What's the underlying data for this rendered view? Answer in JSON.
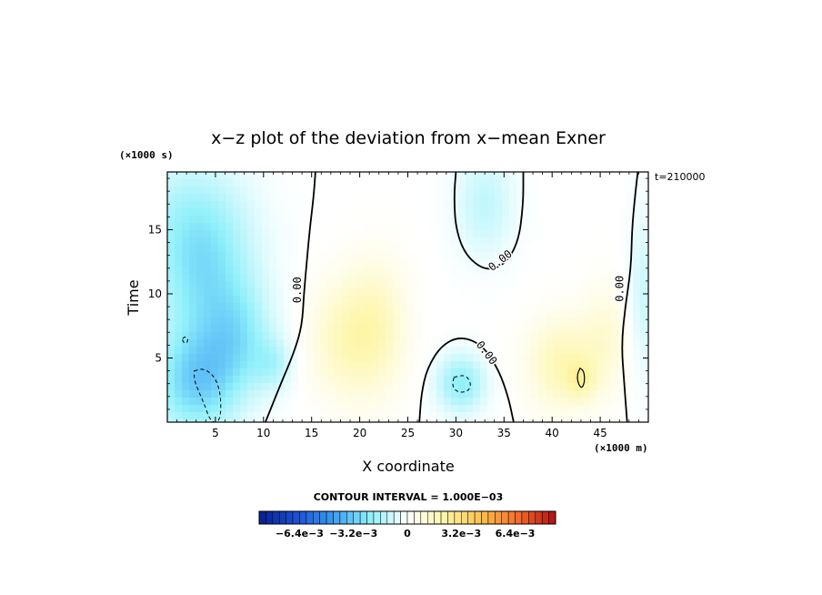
{
  "chart_data": {
    "type": "heatmap",
    "title": "x−z plot of the deviation from x−mean Exner",
    "xlabel": "X coordinate",
    "ylabel": "Time",
    "x_unit": "(×1000 m)",
    "y_unit": "(×1000 s)",
    "time_label": "t=210000",
    "xlim": [
      0,
      50
    ],
    "ylim": [
      0,
      19.5
    ],
    "xticks": [
      5,
      10,
      15,
      20,
      25,
      30,
      35,
      40,
      45
    ],
    "yticks": [
      5,
      10,
      15
    ],
    "contour_interval_label": "CONTOUR INTERVAL = 1.000E−03",
    "colorbar": {
      "range": [
        -0.0088,
        0.0088
      ],
      "tick_labels": [
        "−6.4e−3",
        "−3.2e−3",
        "0",
        "3.2e−3",
        "6.4e−3"
      ],
      "tick_values": [
        -0.0064,
        -0.0032,
        0,
        0.0032,
        0.0064
      ],
      "segments": 44,
      "colors": [
        "#0a1e8c",
        "#1a4fd6",
        "#3a9cf4",
        "#8ff0fa",
        "#ffffff",
        "#fdf6a8",
        "#fcc04a",
        "#f56a2a",
        "#b01010"
      ]
    },
    "contour_labels": [
      {
        "text": "0.00",
        "x": 13.5,
        "y": 10.3,
        "angle": -90
      },
      {
        "text": "0.00",
        "x": 34.6,
        "y": 12.6,
        "angle": -38
      },
      {
        "text": "0.00",
        "x": 33.2,
        "y": 5.4,
        "angle": 52
      },
      {
        "text": "0.00",
        "x": 47.0,
        "y": 10.4,
        "angle": -90
      }
    ],
    "contours_zero": [
      [
        [
          10.2,
          0
        ],
        [
          11.8,
          3
        ],
        [
          13.2,
          5.5
        ],
        [
          14.0,
          7.5
        ],
        [
          14.2,
          10
        ],
        [
          14.5,
          12.5
        ],
        [
          14.8,
          15
        ],
        [
          15.2,
          17.5
        ],
        [
          15.4,
          19.5
        ]
      ],
      [
        [
          30.0,
          19.5
        ],
        [
          29.8,
          17.5
        ],
        [
          30.0,
          15
        ],
        [
          31.0,
          13
        ],
        [
          33.0,
          11.8
        ],
        [
          35.0,
          12.2
        ],
        [
          36.5,
          14
        ],
        [
          37.0,
          17
        ],
        [
          37.0,
          19.5
        ]
      ],
      [
        [
          26.2,
          0
        ],
        [
          26.4,
          2.2
        ],
        [
          27.0,
          4.2
        ],
        [
          28.5,
          6.0
        ],
        [
          30.5,
          6.7
        ],
        [
          32.8,
          6.0
        ],
        [
          34.5,
          4.0
        ],
        [
          35.5,
          1.8
        ],
        [
          36.0,
          0
        ]
      ],
      [
        [
          47.8,
          0
        ],
        [
          47.5,
          3
        ],
        [
          47.2,
          6
        ],
        [
          47.6,
          9
        ],
        [
          48.2,
          12
        ],
        [
          48.3,
          15
        ],
        [
          48.6,
          17.5
        ],
        [
          48.9,
          19.5
        ]
      ]
    ],
    "contours_negative": [
      [
        [
          2.8,
          4.0
        ],
        [
          3.8,
          4.2
        ],
        [
          5.0,
          3.5
        ],
        [
          5.6,
          2.0
        ],
        [
          5.5,
          0
        ],
        [
          4.5,
          0
        ],
        [
          3.8,
          1.5
        ],
        [
          3.2,
          2.5
        ],
        [
          2.8,
          3.3
        ],
        [
          2.8,
          4.0
        ]
      ],
      [
        [
          29.8,
          3.5
        ],
        [
          31.0,
          3.7
        ],
        [
          31.6,
          3.0
        ],
        [
          31.3,
          2.4
        ],
        [
          30.2,
          2.3
        ],
        [
          29.6,
          2.8
        ],
        [
          29.8,
          3.5
        ]
      ],
      [
        [
          1.6,
          6.5
        ],
        [
          1.9,
          6.7
        ],
        [
          2.2,
          6.4
        ],
        [
          1.9,
          6.1
        ],
        [
          1.6,
          6.3
        ],
        [
          1.6,
          6.5
        ]
      ]
    ],
    "contours_positive": [
      [
        [
          42.9,
          4.2
        ],
        [
          43.3,
          4.0
        ],
        [
          43.4,
          3.2
        ],
        [
          43.1,
          2.6
        ],
        [
          42.7,
          3.0
        ],
        [
          42.6,
          3.7
        ],
        [
          42.9,
          4.2
        ]
      ]
    ],
    "field_features": [
      {
        "x": 4.0,
        "y": 11.0,
        "value": -0.0022,
        "sx": 5.0,
        "sy": 6.0
      },
      {
        "x": 3.0,
        "y": 3.0,
        "value": -0.0028,
        "sx": 4.5,
        "sy": 4.0
      },
      {
        "x": 2.0,
        "y": 16.0,
        "value": -0.0012,
        "sx": 6.0,
        "sy": 5.0
      },
      {
        "x": 7.5,
        "y": 6.5,
        "value": -0.0016,
        "sx": 3.5,
        "sy": 4.0
      },
      {
        "x": 11.0,
        "y": 4.5,
        "value": -0.0012,
        "sx": 2.0,
        "sy": 2.0
      },
      {
        "x": 33.0,
        "y": 17.0,
        "value": -0.0012,
        "sx": 3.0,
        "sy": 4.0
      },
      {
        "x": 30.5,
        "y": 3.0,
        "value": -0.0022,
        "sx": 2.5,
        "sy": 2.2
      },
      {
        "x": 18.5,
        "y": 6.5,
        "value": 0.0016,
        "sx": 3.5,
        "sy": 4.5
      },
      {
        "x": 22.0,
        "y": 7.5,
        "value": 0.0014,
        "sx": 3.0,
        "sy": 5.0
      },
      {
        "x": 41.0,
        "y": 4.5,
        "value": 0.0018,
        "sx": 3.5,
        "sy": 3.5
      },
      {
        "x": 43.0,
        "y": 3.3,
        "value": 0.0012,
        "sx": 1.5,
        "sy": 1.5
      },
      {
        "x": 45.5,
        "y": 6.5,
        "value": 0.001,
        "sx": 2.5,
        "sy": 4.0
      },
      {
        "x": 49.5,
        "y": 10.0,
        "value": -0.001,
        "sx": 1.5,
        "sy": 6.0
      }
    ]
  }
}
